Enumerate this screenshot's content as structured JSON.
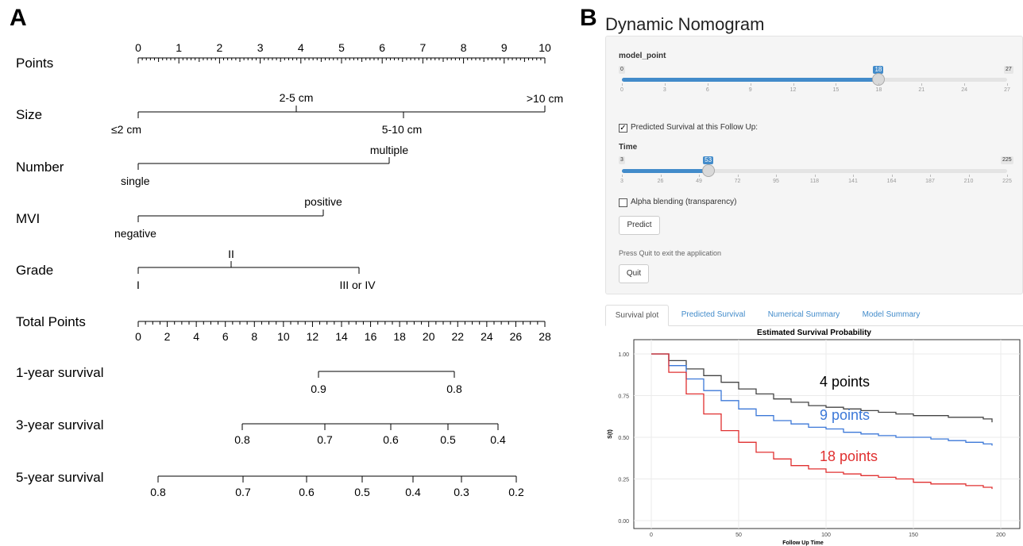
{
  "panel_a": {
    "letter": "A",
    "rows": [
      {
        "label": "Points"
      },
      {
        "label": "Size"
      },
      {
        "label": "Number"
      },
      {
        "label": "MVI"
      },
      {
        "label": "Grade"
      },
      {
        "label": "Total Points"
      },
      {
        "label": "1-year survival"
      },
      {
        "label": "3-year survival"
      },
      {
        "label": "5-year survival"
      }
    ],
    "points_scale": {
      "ticks": [
        "0",
        "1",
        "2",
        "3",
        "4",
        "5",
        "6",
        "7",
        "8",
        "9",
        "10"
      ]
    },
    "size_levels": {
      "upper": [
        "2-5 cm",
        ">10 cm"
      ],
      "lower": [
        "≤2 cm",
        "5-10 cm"
      ]
    },
    "number_levels": {
      "lower": "single",
      "upper": "multiple"
    },
    "mvi_levels": {
      "lower": "negative",
      "upper": "positive"
    },
    "grade_levels": {
      "lower": [
        "I",
        "III or IV"
      ],
      "upper": "II"
    },
    "total_points": {
      "ticks": [
        "0",
        "2",
        "4",
        "6",
        "8",
        "10",
        "12",
        "14",
        "16",
        "18",
        "20",
        "22",
        "24",
        "26",
        "28"
      ]
    },
    "survival_1yr": {
      "ticks": [
        "0.9",
        "0.8"
      ]
    },
    "survival_3yr": {
      "ticks": [
        "0.8",
        "0.7",
        "0.6",
        "0.5",
        "0.4"
      ]
    },
    "survival_5yr": {
      "ticks": [
        "0.8",
        "0.7",
        "0.6",
        "0.5",
        "0.4",
        "0.3",
        "0.2"
      ]
    }
  },
  "panel_b": {
    "letter": "B",
    "app_title": "Dynamic Nomogram",
    "model_point": {
      "label": "model_point",
      "min": "0",
      "max": "27",
      "value": "18",
      "fraction": 0.667,
      "ticks": [
        "0",
        "3",
        "6",
        "9",
        "12",
        "15",
        "18",
        "21",
        "24",
        "27"
      ]
    },
    "predicted_checkbox": {
      "label": "Predicted Survival at this Follow Up:",
      "checked": "✓"
    },
    "time": {
      "label": "Time",
      "min": "3",
      "max": "225",
      "value": "53",
      "fraction": 0.225,
      "ticks": [
        "3",
        "26",
        "49",
        "72",
        "95",
        "118",
        "141",
        "164",
        "187",
        "210",
        "225"
      ]
    },
    "alpha_checkbox": {
      "label": "Alpha blending (transparency)"
    },
    "predict_button": "Predict",
    "quit_help": "Press Quit to exit the application",
    "quit_button": "Quit",
    "tabs": [
      "Survival plot",
      "Predicted Survival",
      "Numerical Summary",
      "Model Summary"
    ],
    "plot": {
      "title": "Estimated Survival Probability",
      "ylabel": "S(t)",
      "xlabel": "Follow Up Time",
      "xticks": [
        "0",
        "50",
        "100",
        "150",
        "200"
      ],
      "yticks": [
        "0.00",
        "0.25",
        "0.50",
        "0.75",
        "1.00"
      ],
      "annotations": [
        "4 points",
        "9 points",
        "18 points"
      ],
      "colors": {
        "4 points": "#000000",
        "9 points": "#3c78d8",
        "18 points": "#e03030"
      }
    }
  },
  "chart_data": {
    "type": "line",
    "title": "Estimated Survival Probability",
    "xlabel": "Follow Up Time",
    "ylabel": "S(t)",
    "xlim": [
      0,
      200
    ],
    "ylim": [
      0,
      1
    ],
    "series": [
      {
        "name": "4 points",
        "x": [
          0,
          3,
          10,
          20,
          30,
          40,
          50,
          60,
          70,
          80,
          90,
          100,
          110,
          120,
          130,
          140,
          150,
          160,
          170,
          180,
          190,
          195
        ],
        "y": [
          1.0,
          1.0,
          0.96,
          0.91,
          0.87,
          0.83,
          0.79,
          0.76,
          0.73,
          0.71,
          0.69,
          0.68,
          0.67,
          0.66,
          0.65,
          0.64,
          0.63,
          0.63,
          0.62,
          0.62,
          0.61,
          0.59
        ]
      },
      {
        "name": "9 points",
        "x": [
          0,
          3,
          10,
          20,
          30,
          40,
          50,
          60,
          70,
          80,
          90,
          100,
          110,
          120,
          130,
          140,
          150,
          160,
          170,
          180,
          190,
          195
        ],
        "y": [
          1.0,
          1.0,
          0.93,
          0.85,
          0.78,
          0.72,
          0.67,
          0.63,
          0.6,
          0.58,
          0.56,
          0.55,
          0.53,
          0.52,
          0.51,
          0.5,
          0.5,
          0.49,
          0.48,
          0.47,
          0.46,
          0.45
        ]
      },
      {
        "name": "18 points",
        "x": [
          0,
          3,
          10,
          20,
          30,
          40,
          50,
          60,
          70,
          80,
          90,
          100,
          110,
          120,
          130,
          140,
          150,
          160,
          170,
          180,
          190,
          195
        ],
        "y": [
          1.0,
          1.0,
          0.89,
          0.76,
          0.64,
          0.54,
          0.47,
          0.41,
          0.37,
          0.33,
          0.31,
          0.29,
          0.28,
          0.27,
          0.26,
          0.25,
          0.23,
          0.22,
          0.22,
          0.21,
          0.2,
          0.19
        ]
      }
    ]
  }
}
